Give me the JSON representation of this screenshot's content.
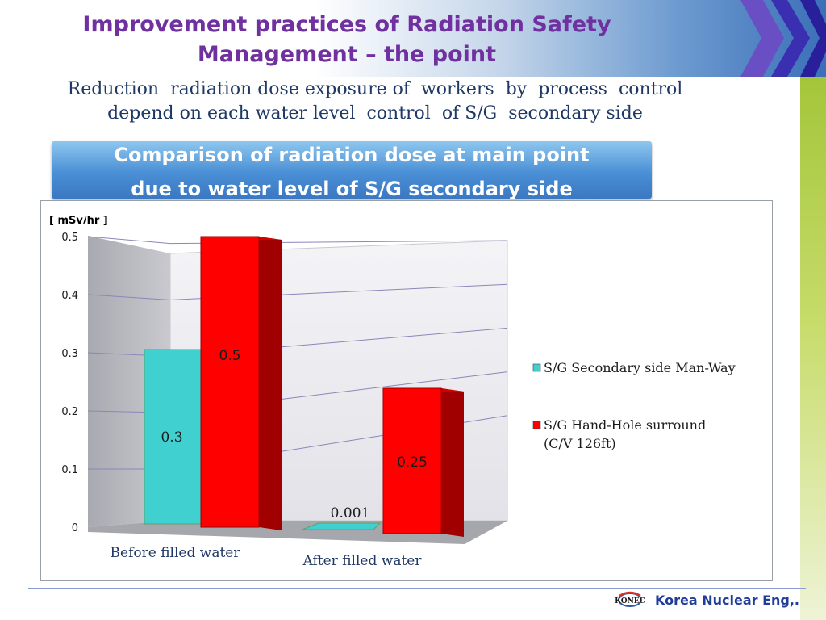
{
  "slide": {
    "title": "Improvement practices of Radiation Safety Management – the point",
    "subtitle_line1": "Reduction  radiation dose exposure of  workers  by  process  control",
    "subtitle_line2": "depend on each water level  control  of S/G  secondary side",
    "banner_line1": "Comparison of radiation dose at main point",
    "banner_line2": "due to water level of S/G secondary side",
    "logo_text": "KONEC",
    "footer": "Korea Nuclear Eng,."
  },
  "colors": {
    "title": "#7030a0",
    "subtitle": "#1f3864",
    "series_manway": "#40d0d0",
    "series_handhole": "#ff0000",
    "footer": "#1f3d99"
  },
  "chart_data": {
    "type": "bar",
    "unit_label": "[ mSv/hr ]",
    "categories": [
      "Before filled water",
      "After filled water"
    ],
    "series": [
      {
        "name": "S/G Secondary side Man-Way",
        "values": [
          0.3,
          0.001
        ]
      },
      {
        "name": "S/G Hand-Hole surround (C/V 126ft)",
        "values": [
          0.5,
          0.25
        ]
      }
    ],
    "value_labels": [
      [
        "0.3",
        "0.001"
      ],
      [
        "0.5",
        "0.25"
      ]
    ],
    "yticks": [
      "0",
      "0.1",
      "0.2",
      "0.3",
      "0.4",
      "0.5"
    ],
    "ylim": [
      0,
      0.5
    ],
    "grid": true,
    "legend_position": "right",
    "three_d": true
  }
}
